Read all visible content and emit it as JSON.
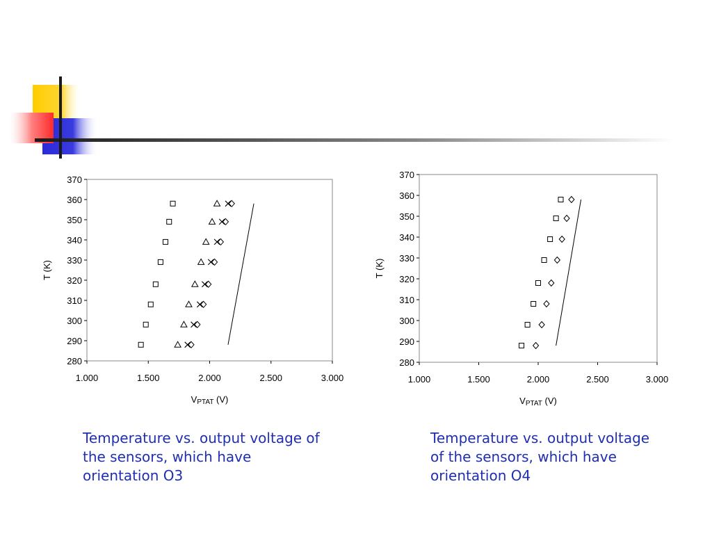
{
  "decoration": {
    "colors": {
      "yellow": "#ffcc00",
      "red": "#ff3333",
      "blue": "#2a2ad8",
      "line": "#1a1a1a"
    }
  },
  "chart_data": [
    {
      "type": "scatter",
      "title": "",
      "xlabel": "V",
      "xlabel_sub": "PTAT",
      "xlabel_unit": " (V)",
      "ylabel": "T (K)",
      "xlim": [
        1.0,
        3.0
      ],
      "ylim": [
        280,
        370
      ],
      "xticks": [
        "1.000",
        "1.500",
        "2.000",
        "2.500",
        "3.000"
      ],
      "yticks": [
        280,
        290,
        300,
        310,
        320,
        330,
        340,
        350,
        360,
        370
      ],
      "series": [
        {
          "marker": "square",
          "x": [
            1.44,
            1.48,
            1.52,
            1.56,
            1.6,
            1.64,
            1.67,
            1.7
          ],
          "y": [
            288,
            298,
            308,
            318,
            329,
            339,
            349,
            358
          ]
        },
        {
          "marker": "triangle",
          "x": [
            1.74,
            1.79,
            1.83,
            1.88,
            1.93,
            1.97,
            2.02,
            2.06
          ],
          "y": [
            288,
            298,
            308,
            318,
            329,
            339,
            349,
            358
          ]
        },
        {
          "marker": "cross",
          "x": [
            1.82,
            1.87,
            1.92,
            1.96,
            2.01,
            2.06,
            2.1,
            2.15
          ],
          "y": [
            288,
            298,
            308,
            318,
            329,
            339,
            349,
            358
          ]
        },
        {
          "marker": "diamond",
          "x": [
            1.85,
            1.9,
            1.95,
            1.99,
            2.04,
            2.09,
            2.13,
            2.18
          ],
          "y": [
            288,
            298,
            308,
            318,
            329,
            339,
            349,
            358
          ]
        },
        {
          "marker": "line",
          "x": [
            2.15,
            2.36
          ],
          "y": [
            288,
            358
          ]
        }
      ]
    },
    {
      "type": "scatter",
      "title": "",
      "xlabel": "V",
      "xlabel_sub": "PTAT",
      "xlabel_unit": " (V)",
      "ylabel": "T (K)",
      "xlim": [
        1.0,
        3.0
      ],
      "ylim": [
        280,
        370
      ],
      "xticks": [
        "1.000",
        "1.500",
        "2.000",
        "2.500",
        "3.000"
      ],
      "yticks": [
        280,
        290,
        300,
        310,
        320,
        330,
        340,
        350,
        360,
        370
      ],
      "series": [
        {
          "marker": "square",
          "x": [
            1.86,
            1.91,
            1.96,
            2.0,
            2.05,
            2.1,
            2.15,
            2.19
          ],
          "y": [
            288,
            298,
            308,
            318,
            329,
            339,
            349,
            358
          ]
        },
        {
          "marker": "diamond",
          "x": [
            1.98,
            2.03,
            2.07,
            2.11,
            2.16,
            2.2,
            2.24,
            2.28
          ],
          "y": [
            288,
            298,
            308,
            318,
            329,
            339,
            349,
            358
          ]
        },
        {
          "marker": "line",
          "x": [
            2.15,
            2.36
          ],
          "y": [
            288,
            358
          ]
        }
      ]
    }
  ],
  "captions": {
    "left": "Temperature vs. output voltage of\nthe sensors, which have\norientation O3",
    "right": "Temperature vs. output voltage\nof the sensors, which have\norientation O4"
  }
}
